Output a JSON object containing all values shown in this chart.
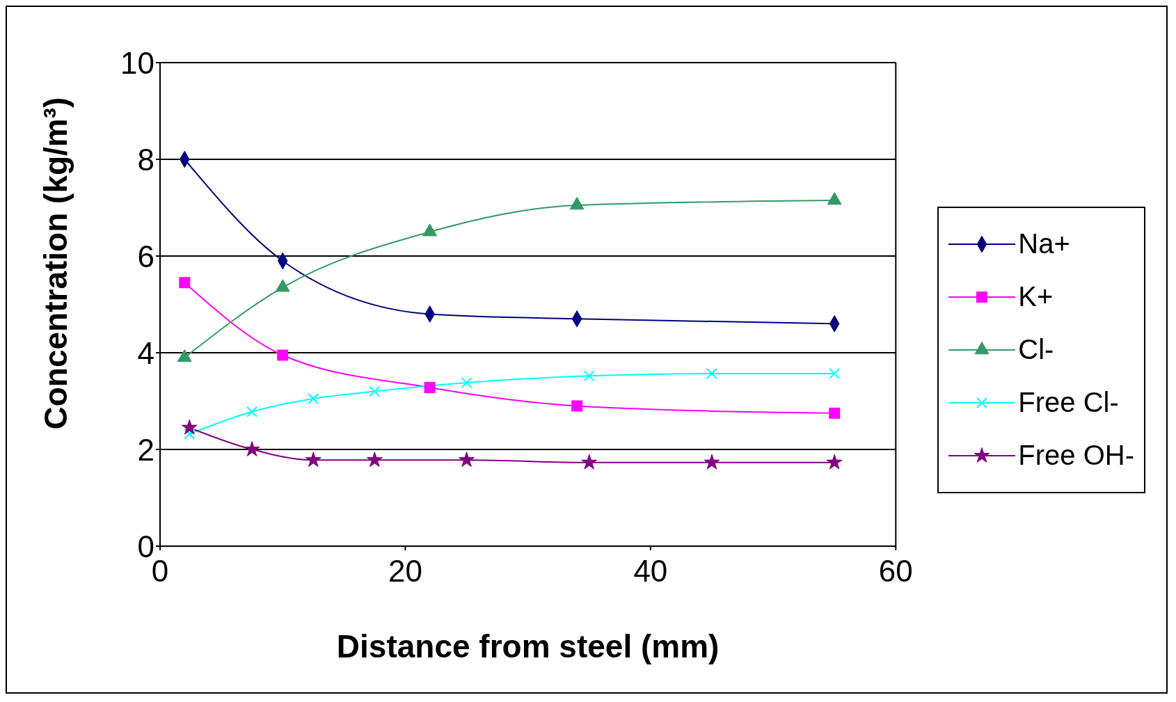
{
  "chart_data": {
    "type": "line",
    "xlabel": "Distance from steel (mm)",
    "ylabel": "Concentration (kg/m³)",
    "xlim": [
      0,
      60
    ],
    "xticks": [
      0,
      20,
      40,
      60
    ],
    "ylim": [
      0,
      10
    ],
    "yticks": [
      0,
      2,
      4,
      6,
      8,
      10
    ],
    "grid": "y",
    "legend": "right",
    "series": [
      {
        "name": "Na+",
        "color": "#000080",
        "marker": "diamond",
        "x": [
          2,
          10,
          22,
          34,
          55
        ],
        "values": [
          8.0,
          5.9,
          4.8,
          4.7,
          4.6
        ]
      },
      {
        "name": "K+",
        "color": "#ff00ff",
        "marker": "square",
        "x": [
          2,
          10,
          22,
          34,
          55
        ],
        "values": [
          5.45,
          3.95,
          3.28,
          2.9,
          2.75
        ]
      },
      {
        "name": "Cl-",
        "color": "#339966",
        "marker": "triangle",
        "x": [
          2,
          10,
          22,
          34,
          55
        ],
        "values": [
          3.9,
          5.35,
          6.5,
          7.05,
          7.15
        ]
      },
      {
        "name": "Free Cl-",
        "color": "#00ffff",
        "marker": "cross",
        "x": [
          2.4,
          7.5,
          12.5,
          17.5,
          25,
          35,
          45,
          55
        ],
        "values": [
          2.32,
          2.78,
          3.05,
          3.2,
          3.38,
          3.52,
          3.57,
          3.57
        ]
      },
      {
        "name": "Free OH-",
        "color": "#800080",
        "marker": "star",
        "x": [
          2.4,
          7.5,
          12.5,
          17.5,
          25,
          35,
          45,
          55
        ],
        "values": [
          2.45,
          2.0,
          1.78,
          1.78,
          1.78,
          1.73,
          1.73,
          1.73
        ]
      }
    ]
  }
}
